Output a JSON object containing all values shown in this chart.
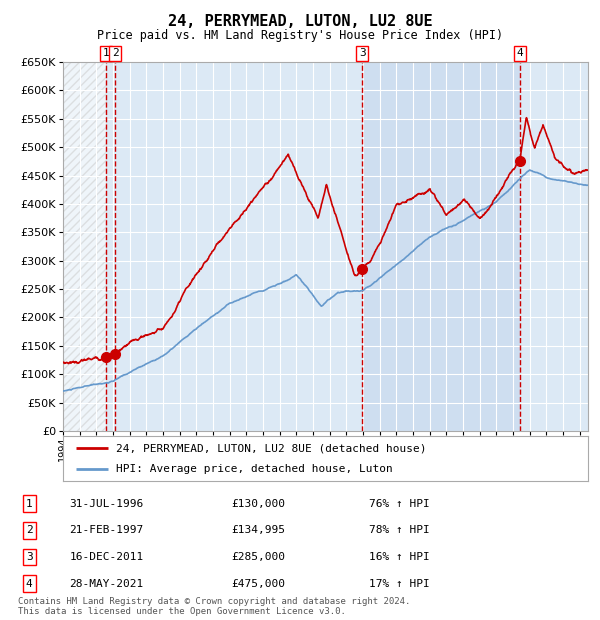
{
  "title": "24, PERRYMEAD, LUTON, LU2 8UE",
  "subtitle": "Price paid vs. HM Land Registry's House Price Index (HPI)",
  "ylim": [
    0,
    650000
  ],
  "yticks": [
    0,
    50000,
    100000,
    150000,
    200000,
    250000,
    300000,
    350000,
    400000,
    450000,
    500000,
    550000,
    600000,
    650000
  ],
  "xlim_start": 1994.0,
  "xlim_end": 2025.5,
  "background_color": "#ffffff",
  "plot_bg_color": "#dce9f5",
  "grid_color": "#ffffff",
  "sale_color": "#cc0000",
  "hpi_color": "#6699cc",
  "vline_color": "#cc0000",
  "transaction_dates": [
    1996.58,
    1997.13,
    2011.96,
    2021.41
  ],
  "transaction_prices": [
    130000,
    134995,
    285000,
    475000
  ],
  "transaction_labels": [
    "1",
    "2",
    "3",
    "4"
  ],
  "legend_sale_label": "24, PERRYMEAD, LUTON, LU2 8UE (detached house)",
  "legend_hpi_label": "HPI: Average price, detached house, Luton",
  "table_rows": [
    [
      "1",
      "31-JUL-1996",
      "£130,000",
      "76% ↑ HPI"
    ],
    [
      "2",
      "21-FEB-1997",
      "£134,995",
      "78% ↑ HPI"
    ],
    [
      "3",
      "16-DEC-2011",
      "£285,000",
      "16% ↑ HPI"
    ],
    [
      "4",
      "28-MAY-2021",
      "£475,000",
      "17% ↑ HPI"
    ]
  ],
  "footer": "Contains HM Land Registry data © Crown copyright and database right 2024.\nThis data is licensed under the Open Government Licence v3.0."
}
